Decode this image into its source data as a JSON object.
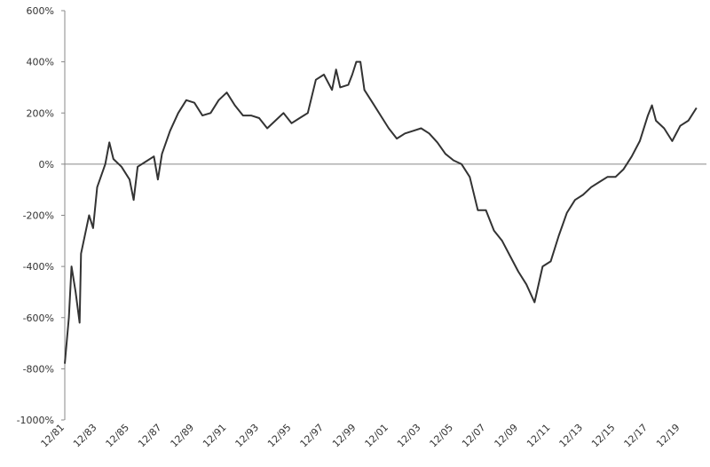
{
  "chart_data": {
    "type": "line",
    "color": "#333333",
    "x": [
      "1981-12",
      "1982-03",
      "1982-05",
      "1982-08",
      "1982-11",
      "1982-12",
      "1983-06",
      "1983-09",
      "1983-12",
      "1984-06",
      "1984-09",
      "1984-12",
      "1985-06",
      "1985-12",
      "1986-03",
      "1986-06",
      "1986-12",
      "1987-06",
      "1987-09",
      "1987-12",
      "1988-06",
      "1988-12",
      "1989-06",
      "1989-12",
      "1990-06",
      "1990-12",
      "1991-06",
      "1991-12",
      "1992-06",
      "1992-12",
      "1993-06",
      "1993-12",
      "1994-06",
      "1994-12",
      "1995-06",
      "1995-12",
      "1996-06",
      "1996-12",
      "1997-06",
      "1997-12",
      "1998-06",
      "1998-09",
      "1998-12",
      "1999-06",
      "1999-09",
      "1999-12",
      "2000-03",
      "2000-06",
      "2000-12",
      "2001-06",
      "2001-12",
      "2002-06",
      "2002-12",
      "2003-06",
      "2003-12",
      "2004-06",
      "2004-12",
      "2005-06",
      "2005-12",
      "2006-06",
      "2006-12",
      "2007-06",
      "2007-12",
      "2008-06",
      "2008-12",
      "2009-06",
      "2009-12",
      "2010-06",
      "2010-12",
      "2011-06",
      "2011-12",
      "2012-06",
      "2012-12",
      "2013-06",
      "2013-12",
      "2014-06",
      "2014-12",
      "2015-06",
      "2015-12",
      "2016-06",
      "2016-12",
      "2017-06",
      "2017-12",
      "2018-03",
      "2018-06",
      "2018-12",
      "2019-06",
      "2019-12",
      "2020-06",
      "2020-12"
    ],
    "values": [
      -780,
      -600,
      -400,
      -500,
      -620,
      -350,
      -200,
      -250,
      -90,
      0,
      85,
      20,
      -10,
      -60,
      -140,
      -10,
      10,
      30,
      -60,
      40,
      130,
      200,
      250,
      240,
      190,
      200,
      250,
      280,
      230,
      190,
      190,
      180,
      140,
      170,
      200,
      160,
      180,
      200,
      330,
      350,
      290,
      370,
      300,
      310,
      350,
      400,
      400,
      290,
      240,
      190,
      140,
      100,
      120,
      130,
      140,
      120,
      85,
      40,
      15,
      0,
      -50,
      -180,
      -180,
      -260,
      -300,
      -360,
      -420,
      -470,
      -540,
      -400,
      -380,
      -280,
      -190,
      -140,
      -120,
      -90,
      -70,
      -50,
      -50,
      -20,
      30,
      90,
      190,
      230,
      170,
      140,
      90,
      150,
      170,
      220
    ],
    "xticks": [
      {
        "value": "1981-12",
        "label": "12/81"
      },
      {
        "value": "1983-12",
        "label": "12/83"
      },
      {
        "value": "1985-12",
        "label": "12/85"
      },
      {
        "value": "1987-12",
        "label": "12/87"
      },
      {
        "value": "1989-12",
        "label": "12/89"
      },
      {
        "value": "1991-12",
        "label": "12/91"
      },
      {
        "value": "1993-12",
        "label": "12/93"
      },
      {
        "value": "1995-12",
        "label": "12/95"
      },
      {
        "value": "1997-12",
        "label": "12/97"
      },
      {
        "value": "1999-12",
        "label": "12/99"
      },
      {
        "value": "2001-12",
        "label": "12/01"
      },
      {
        "value": "2003-12",
        "label": "12/03"
      },
      {
        "value": "2005-12",
        "label": "12/05"
      },
      {
        "value": "2007-12",
        "label": "12/07"
      },
      {
        "value": "2009-12",
        "label": "12/09"
      },
      {
        "value": "2011-12",
        "label": "12/11"
      },
      {
        "value": "2013-12",
        "label": "12/13"
      },
      {
        "value": "2015-12",
        "label": "12/15"
      },
      {
        "value": "2017-12",
        "label": "12/17"
      },
      {
        "value": "2019-12",
        "label": "12/19"
      }
    ],
    "ylim": [
      -1000,
      600
    ],
    "yticks": [
      {
        "value": -1000,
        "label": "-1000%"
      },
      {
        "value": -800,
        "label": "-800%"
      },
      {
        "value": -600,
        "label": "-600%"
      },
      {
        "value": -400,
        "label": "-400%"
      },
      {
        "value": -200,
        "label": "-200%"
      },
      {
        "value": 0,
        "label": "0%"
      },
      {
        "value": 200,
        "label": "200%"
      },
      {
        "value": 400,
        "label": "400%"
      },
      {
        "value": 600,
        "label": "600%"
      }
    ]
  }
}
